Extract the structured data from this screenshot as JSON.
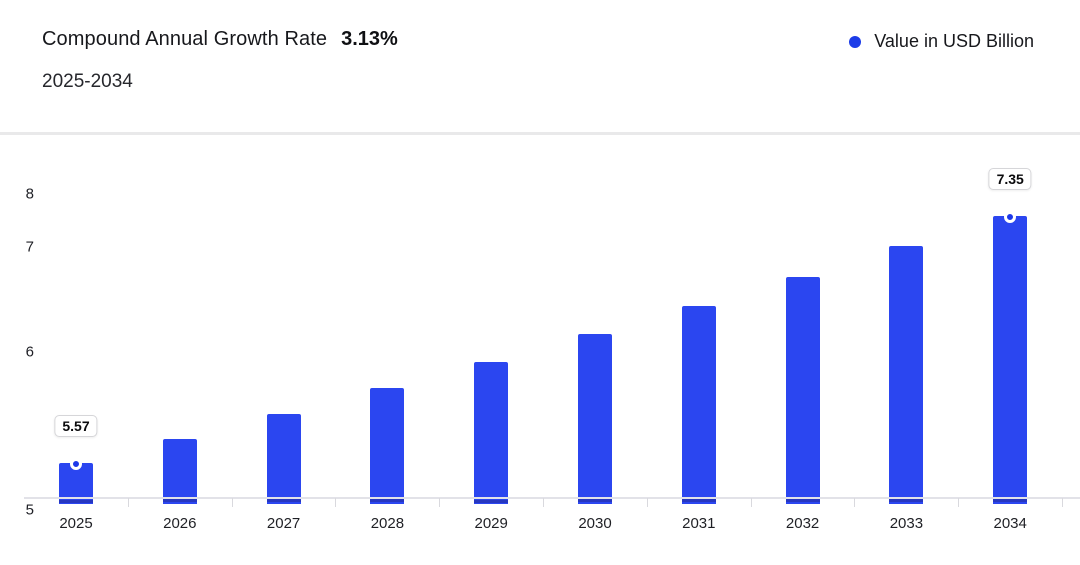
{
  "header": {
    "title": "Compound Annual Growth Rate",
    "cagr_value": "3.13%",
    "subtitle": "2025-2034",
    "legend": {
      "label": "Value in USD Billion",
      "marker_color": "#1c3ce8"
    }
  },
  "chart_data": {
    "type": "bar",
    "title": "Compound Annual Growth Rate 3.13%",
    "subtitle": "2025-2034",
    "unit": "USD Billion",
    "categories": [
      "2025",
      "2026",
      "2027",
      "2028",
      "2029",
      "2030",
      "2031",
      "2032",
      "2033",
      "2034"
    ],
    "values": [
      5.57,
      5.74,
      5.92,
      6.11,
      6.3,
      6.5,
      6.7,
      6.91,
      7.13,
      7.35
    ],
    "labeled_points": [
      {
        "category": "2025",
        "label": "5.57"
      },
      {
        "category": "2034",
        "label": "7.35"
      }
    ],
    "xlabel": "",
    "ylabel": "",
    "y_ticks": [
      "5",
      "6",
      "7",
      "8"
    ],
    "ylim": [
      5,
      8.35
    ],
    "grid": false,
    "legend_position": "top-right",
    "legend_entries": [
      "Value in USD Billion"
    ],
    "bar_color": "#2b46f0",
    "bar_base_color": "#2737c0",
    "marker_color": "#1c38e9",
    "axis_line_color": "#e2e2e8"
  }
}
